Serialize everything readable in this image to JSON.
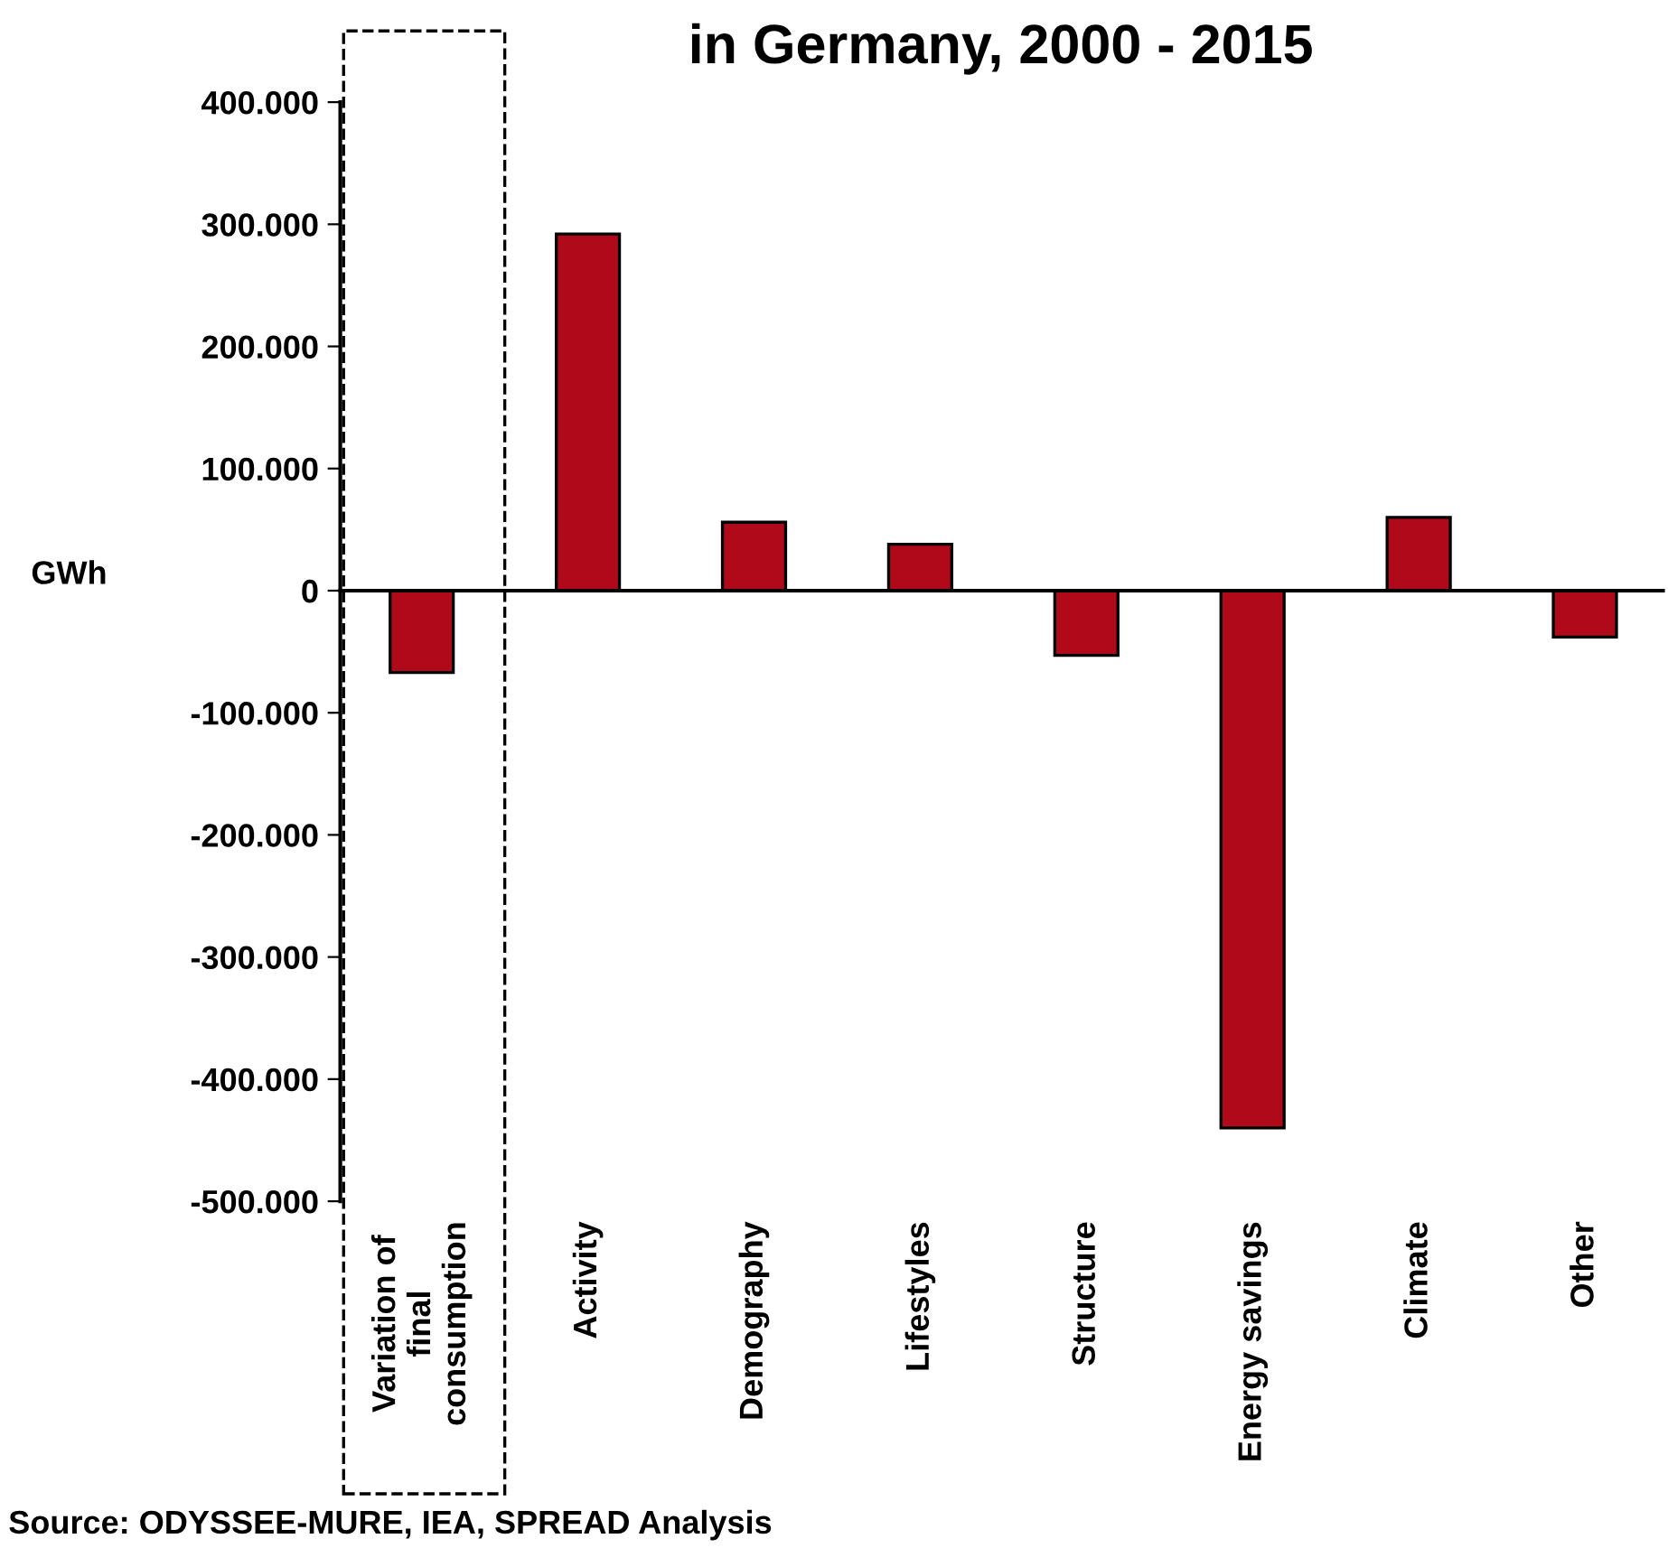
{
  "chart_data": {
    "type": "bar",
    "title": "in Germany, 2000 - 2015",
    "ylabel": "GWh",
    "categories": [
      "Variation of\nfinal\nconsumption",
      "Activity",
      "Demography",
      "Lifestyles",
      "Structure",
      "Energy savings",
      "Climate",
      "Other"
    ],
    "values": [
      -67000,
      292000,
      56000,
      38000,
      -53000,
      -440000,
      60000,
      -38000
    ],
    "color": "#b00a1a",
    "ylim": [
      -500000,
      400000
    ],
    "yticks": [
      {
        "value": -500000,
        "label": "-500.000"
      },
      {
        "value": -400000,
        "label": "-400.000"
      },
      {
        "value": -300000,
        "label": "-300.000"
      },
      {
        "value": -200000,
        "label": "-200.000"
      },
      {
        "value": -100000,
        "label": "-100.000"
      },
      {
        "value": 0,
        "label": "0"
      },
      {
        "value": 100000,
        "label": "100.000"
      },
      {
        "value": 200000,
        "label": "200.000"
      },
      {
        "value": 300000,
        "label": "300.000"
      },
      {
        "value": 400000,
        "label": "400.000"
      }
    ],
    "annotations": [
      "Source: ODYSSEE-MURE, IEA, SPREAD Analysis"
    ]
  }
}
